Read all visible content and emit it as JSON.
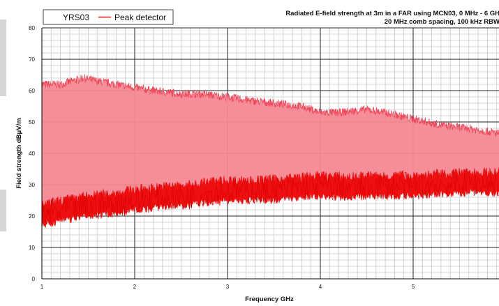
{
  "chart_data": {
    "type": "line",
    "title": "Radiated E-field strength at 3m in a FAR using MCN03, 0 MHz - 6 GH",
    "subtitle": "20 MHz comb spacing, 100 kHz RBW",
    "xlabel": "Frequency GHz",
    "ylabel": "Field strength dBμV/m",
    "xlim": [
      1,
      6
    ],
    "ylim": [
      0,
      80
    ],
    "x_ticks": [
      "1",
      "2",
      "3",
      "4",
      "5"
    ],
    "y_ticks": [
      "0",
      "10",
      "20",
      "30",
      "40",
      "50",
      "60",
      "70",
      "80"
    ],
    "grid": true,
    "legend": {
      "position": "top-left",
      "entries": [
        "YRS03",
        "Peak detector"
      ]
    },
    "series": [
      {
        "name": "YRS03",
        "style": "comb",
        "color": "#f06070",
        "x": [
          1.0,
          1.2,
          1.45,
          1.6,
          1.8,
          2.0,
          2.2,
          2.5,
          2.7,
          3.0,
          3.2,
          3.5,
          3.8,
          4.0,
          4.2,
          4.5,
          4.7,
          5.0,
          5.3,
          5.6,
          5.8,
          6.0
        ],
        "values": [
          62,
          62,
          64,
          63,
          62,
          61,
          60,
          59,
          59,
          58,
          57,
          56,
          55,
          53,
          53,
          54,
          53,
          51,
          49,
          48,
          47,
          46
        ]
      },
      {
        "name": "Peak detector",
        "style": "noise-floor",
        "color": "#ee1010",
        "x": [
          1.0,
          1.2,
          1.5,
          1.8,
          2.0,
          2.3,
          2.6,
          2.8,
          3.0,
          3.3,
          3.6,
          3.8,
          4.0,
          4.3,
          4.6,
          5.0,
          5.3,
          5.6,
          6.0
        ],
        "values": [
          20,
          21.5,
          23,
          24,
          25,
          26,
          26.5,
          27.5,
          28,
          28,
          28.5,
          29,
          29.5,
          29,
          29.5,
          29.5,
          30,
          30.5,
          30.5
        ]
      }
    ]
  }
}
